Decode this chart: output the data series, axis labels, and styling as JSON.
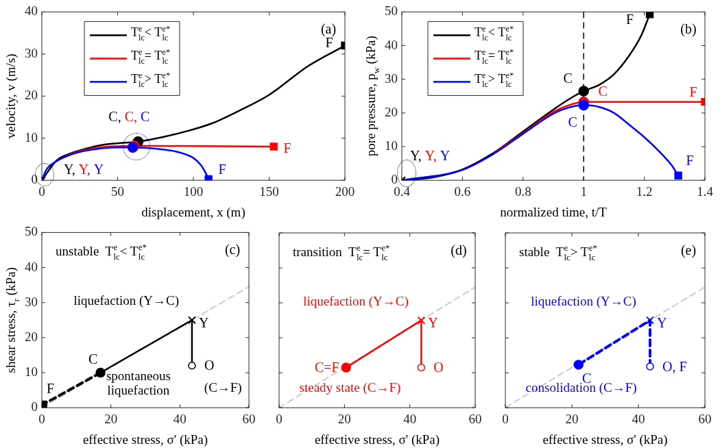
{
  "chart_data": [
    {
      "type": "line",
      "title": "(a)",
      "xlabel": "displacement, x (m)",
      "ylabel": "velocity, v (m/s)",
      "xlim": [
        0,
        200
      ],
      "ylim": [
        0,
        40
      ],
      "xticks": [
        0,
        50,
        100,
        150,
        200
      ],
      "yticks": [
        0,
        10,
        20,
        30,
        40
      ],
      "legend": "top left",
      "series": [
        {
          "name": "T$^{e}$$_{lc}$< T$^{e*}$$_{lc}$",
          "color": "#000000",
          "x": [
            0,
            10,
            20,
            30,
            40,
            50,
            63.5,
            80,
            95,
            112,
            130,
            150,
            176,
            200
          ],
          "values": [
            0,
            4.8,
            6.5,
            7.6,
            8.4,
            8.8,
            9.2,
            10.3,
            11.6,
            13.5,
            16.5,
            20.3,
            27.2,
            32
          ]
        },
        {
          "name": "T$^{e}$$_{lc}$= T$^{e*}$$_{lc}$",
          "color": "#ff0000",
          "x": [
            10,
            20,
            30,
            40,
            50,
            61,
            153
          ],
          "values": [
            4.7,
            6.3,
            7.3,
            7.9,
            8.1,
            8.2,
            8
          ]
        },
        {
          "name": "T$^{e}$$_{lc}$> T$^{e*}$$_{lc}$",
          "color": "#0000ff",
          "x": [
            0,
            3,
            10,
            20,
            30,
            40,
            50,
            60,
            75,
            90,
            100,
            105,
            108,
            110
          ],
          "values": [
            0,
            2.5,
            4.6,
            6.2,
            7.1,
            7.6,
            7.8,
            7.8,
            7.5,
            6.7,
            5.3,
            3.6,
            1.8,
            0.3
          ]
        },
        {
          "type": "scatter",
          "color": "#000000",
          "marker": "cross",
          "x": [
            0
          ],
          "values": [
            0
          ],
          "value_labels": [
            "Y, Y, Y"
          ]
        },
        {
          "type": "scatter",
          "color": "#000000",
          "marker": "circle",
          "x": [
            63.5
          ],
          "values": [
            9.2
          ],
          "value_labels": [
            "C,"
          ]
        },
        {
          "type": "scatter",
          "color": "#ff0000",
          "marker": "circle",
          "x": [
            61
          ],
          "values": [
            8.2
          ],
          "value_labels": [
            "C,"
          ]
        },
        {
          "type": "scatter",
          "color": "#0000ff",
          "marker": "circle",
          "x": [
            60
          ],
          "values": [
            7.8
          ],
          "value_labels": [
            "C"
          ]
        },
        {
          "type": "scatter",
          "color": "#000000",
          "marker": "square",
          "x": [
            200
          ],
          "values": [
            32
          ],
          "value_labels": [
            "F"
          ]
        },
        {
          "type": "scatter",
          "color": "#ff0000",
          "marker": "square",
          "x": [
            153
          ],
          "values": [
            8
          ],
          "value_labels": [
            "F"
          ]
        },
        {
          "type": "scatter",
          "color": "#0000ff",
          "marker": "square",
          "x": [
            110
          ],
          "values": [
            0.3
          ],
          "value_labels": [
            "F"
          ]
        }
      ]
    },
    {
      "type": "line",
      "title": "(b)",
      "xlabel": "normalized time, t/T",
      "ylabel": "pore pressure, p$_{w}$ (kPa)",
      "xlim": [
        0.4,
        1.4
      ],
      "ylim": [
        0,
        50
      ],
      "xticks": [
        0.4,
        0.6,
        0.8,
        1,
        1.2,
        1.4
      ],
      "yticks": [
        0,
        10,
        20,
        30,
        40,
        50
      ],
      "legend": "top left",
      "ref_lines": [
        {
          "axis": "x",
          "value": 1,
          "color": "#000000",
          "line_style": "dashed"
        }
      ],
      "series": [
        {
          "name": "T$^{e}$$_{lc}$< T$^{e*}$$_{lc}$",
          "color": "#000000",
          "x": [
            0.4,
            0.5,
            0.6,
            0.7,
            0.8,
            0.9,
            0.95,
            1,
            1.05,
            1.1,
            1.15,
            1.19,
            1.218
          ],
          "values": [
            0,
            0.8,
            3.2,
            8,
            14.5,
            21,
            24,
            26.5,
            28.3,
            31.5,
            37,
            43,
            49.3
          ]
        },
        {
          "name": "T$^{e}$$_{lc}$= T$^{e*}$$_{lc}$",
          "color": "#ff0000",
          "x": [
            0.7,
            0.8,
            0.9,
            0.95,
            1,
            1.4
          ],
          "values": [
            7.8,
            14,
            20.3,
            22.3,
            23.3,
            23.3
          ]
        },
        {
          "name": "T$^{e}$$_{lc}$> T$^{e*}$$_{lc}$",
          "color": "#0000ff",
          "x": [
            0.4,
            0.6,
            0.7,
            0.8,
            0.9,
            0.95,
            1,
            1.05,
            1.1,
            1.15,
            1.2,
            1.25,
            1.29,
            1.312
          ],
          "values": [
            0,
            3.1,
            7.7,
            13.8,
            19.8,
            21.6,
            22.3,
            21.8,
            20,
            16.5,
            12.8,
            8.5,
            4.5,
            1.4
          ]
        },
        {
          "type": "scatter",
          "color": "#000000",
          "marker": "cross",
          "x": [
            0.4
          ],
          "values": [
            0
          ],
          "value_labels": [
            "Y, Y, Y"
          ]
        },
        {
          "type": "scatter",
          "color": "#000000",
          "marker": "circle",
          "x": [
            1
          ],
          "values": [
            26.5
          ],
          "value_labels": [
            "C"
          ]
        },
        {
          "type": "scatter",
          "color": "#ff0000",
          "marker": "circle",
          "x": [
            1
          ],
          "values": [
            23.3
          ],
          "value_labels": [
            "C"
          ]
        },
        {
          "type": "scatter",
          "color": "#0000ff",
          "marker": "circle",
          "x": [
            1
          ],
          "values": [
            22.3
          ],
          "value_labels": [
            "C"
          ]
        },
        {
          "type": "scatter",
          "color": "#000000",
          "marker": "square",
          "x": [
            1.218
          ],
          "values": [
            49.3
          ],
          "value_labels": [
            "F"
          ]
        },
        {
          "type": "scatter",
          "color": "#ff0000",
          "marker": "square",
          "x": [
            1.4
          ],
          "values": [
            23.3
          ],
          "value_labels": [
            "F"
          ]
        },
        {
          "type": "scatter",
          "color": "#0000ff",
          "marker": "square",
          "x": [
            1.312
          ],
          "values": [
            1.4
          ],
          "value_labels": [
            "F"
          ]
        }
      ]
    },
    {
      "type": "line",
      "title": "(c)",
      "subtitle": "unstable  T$^{e}$$_{lc}$< T$^{e*}$$_{lc}$",
      "xlabel": "effective stress, σ' (kPa)",
      "ylabel": "shear stress, τ$_{r}$ (kPa)",
      "xlim": [
        0,
        60
      ],
      "ylim": [
        0,
        50
      ],
      "xticks": [
        0,
        20,
        40,
        60
      ],
      "yticks": [
        0,
        10,
        20,
        30,
        40,
        50
      ],
      "annotations": [
        "liquefaction (Y→C)",
        "spontaneous\nliquefaction",
        "(C→F)"
      ],
      "series": [
        {
          "color": "#cccccc",
          "line_style": "dashed",
          "x": [
            0,
            60
          ],
          "values": [
            0,
            34.5
          ]
        },
        {
          "color": "#000000",
          "x": [
            43.5,
            43.5,
            17
          ],
          "values": [
            12,
            25,
            10
          ]
        },
        {
          "color": "#000000",
          "line_style": "dashed",
          "x": [
            17,
            0.5
          ],
          "values": [
            10,
            1
          ]
        },
        {
          "type": "scatter",
          "color": "#000000",
          "marker": "cross",
          "x": [
            43.5
          ],
          "values": [
            25
          ],
          "value_labels": [
            "Y"
          ]
        },
        {
          "type": "scatter",
          "color": "#000000",
          "marker": "circle",
          "x": [
            43.5
          ],
          "values": [
            12
          ],
          "value_labels": [
            "O"
          ]
        },
        {
          "type": "scatter",
          "color": "#000000",
          "marker": "circle",
          "x": [
            17
          ],
          "values": [
            10
          ],
          "value_labels": [
            "C"
          ]
        },
        {
          "type": "scatter",
          "color": "#000000",
          "marker": "square",
          "x": [
            0.5
          ],
          "values": [
            1
          ],
          "value_labels": [
            "F"
          ]
        }
      ]
    },
    {
      "type": "line",
      "title": "(d)",
      "subtitle": "transition  T$^{e}$$_{lc}$= T$^{e*}$$_{lc}$",
      "xlabel": "effective stress, σ' (kPa)",
      "xlim": [
        0,
        60
      ],
      "ylim": [
        0,
        50
      ],
      "xticks": [
        0,
        20,
        40,
        60
      ],
      "yticks": [
        0,
        10,
        20,
        30,
        40,
        50
      ],
      "tick_labels": "x",
      "annotations": [
        "liquefaction (Y→C)",
        "steady state (C→F)"
      ],
      "series": [
        {
          "color": "#cccccc",
          "line_style": "dashed",
          "x": [
            0,
            60
          ],
          "values": [
            0,
            34.5
          ]
        },
        {
          "color": "#ff0000",
          "x": [
            43.5,
            43.5,
            20.5
          ],
          "values": [
            11.5,
            25,
            11.5
          ]
        },
        {
          "type": "scatter",
          "color": "#ff0000",
          "marker": "cross",
          "x": [
            43.5
          ],
          "values": [
            25
          ],
          "value_labels": [
            "Y"
          ]
        },
        {
          "type": "scatter",
          "color": "#ff0000",
          "marker": "circle",
          "x": [
            43.5
          ],
          "values": [
            11.5
          ],
          "value_labels": [
            "O"
          ]
        },
        {
          "type": "scatter",
          "color": "#ff0000",
          "marker": "circle",
          "x": [
            20.5
          ],
          "values": [
            11.5
          ],
          "value_labels": [
            "C=F"
          ]
        }
      ]
    },
    {
      "type": "line",
      "title": "(e)",
      "subtitle": "stable  T$^{e}$$_{lc}$> T$^{e*}$$_{lc}$",
      "xlabel": "effective stress, σ' (kPa)",
      "xlim": [
        0,
        60
      ],
      "ylim": [
        0,
        50
      ],
      "xticks": [
        0,
        20,
        40,
        60
      ],
      "yticks": [
        0,
        10,
        20,
        30,
        40,
        50
      ],
      "tick_labels": "x",
      "annotations": [
        "liquefaction (Y→C)",
        "consolidation (C→F)"
      ],
      "series": [
        {
          "color": "#cccccc",
          "line_style": "dashed",
          "x": [
            0,
            60
          ],
          "values": [
            0,
            34.5
          ]
        },
        {
          "color": "#0000ff",
          "line_style": "dashed",
          "x": [
            43.5,
            43.5,
            22
          ],
          "values": [
            11.8,
            25,
            12.3
          ]
        },
        {
          "type": "scatter",
          "color": "#0000ff",
          "marker": "cross",
          "x": [
            43.5
          ],
          "values": [
            25
          ],
          "value_labels": [
            "Y"
          ]
        },
        {
          "type": "scatter",
          "color": "#0000ff",
          "marker": "circle",
          "x": [
            43.5
          ],
          "values": [
            11.8
          ],
          "value_labels": [
            "O, F"
          ]
        },
        {
          "type": "scatter",
          "color": "#0000ff",
          "marker": "circle",
          "x": [
            22
          ],
          "values": [
            12.3
          ],
          "value_labels": [
            "C"
          ]
        }
      ]
    }
  ]
}
